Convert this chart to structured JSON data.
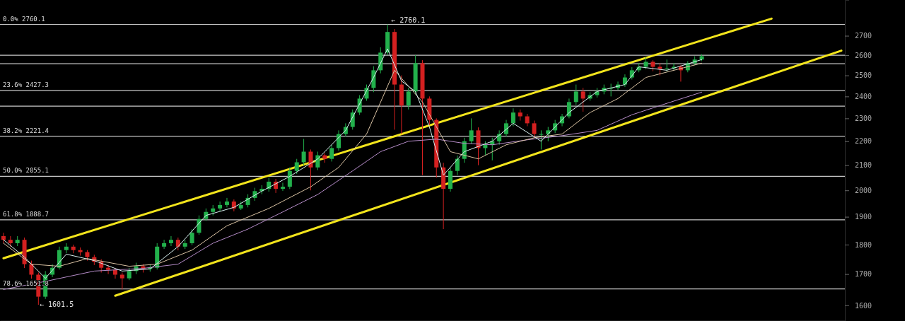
{
  "chart_data": {
    "type": "candlestick",
    "log": true,
    "tick_labels": "y",
    "grid": false,
    "marker": "none",
    "categories": [
      null,
      null,
      null,
      null,
      null,
      null,
      null,
      null,
      null,
      null,
      null,
      null,
      null,
      null,
      null,
      null,
      null,
      null,
      null,
      null,
      null,
      null,
      null,
      null,
      null,
      null,
      null,
      null,
      null,
      null,
      null,
      null,
      null,
      null,
      null,
      null,
      null,
      null,
      null,
      null,
      null,
      null,
      null,
      null,
      null,
      null,
      null,
      null,
      null,
      null,
      null,
      null,
      null,
      null,
      null,
      null,
      null,
      null,
      null,
      null,
      null,
      null,
      null,
      null,
      null,
      null,
      null,
      null,
      null,
      null,
      null,
      null,
      null,
      null,
      null,
      null,
      null,
      null,
      null,
      null,
      null,
      null,
      null,
      null,
      null,
      null,
      null,
      null,
      null,
      null,
      null,
      null,
      null,
      null,
      null,
      null,
      null,
      null,
      null,
      null,
      null,
      null,
      null,
      null,
      null,
      null,
      null,
      null,
      null,
      null,
      null,
      null,
      null,
      null,
      null,
      null,
      null,
      null,
      null,
      null,
      null
    ],
    "ylim": [
      1552,
      2894
    ],
    "yticks": [
      1600,
      1700,
      1800,
      1900,
      2000,
      2100,
      2200,
      2300,
      2400,
      2500,
      2600,
      2700
    ],
    "ohlc": [
      [
        1830,
        1842,
        1805,
        1817
      ],
      [
        1817,
        1830,
        1793,
        1805
      ],
      [
        1805,
        1830,
        1795,
        1817
      ],
      [
        1817,
        1825,
        1720,
        1733
      ],
      [
        1733,
        1745,
        1685,
        1698
      ],
      [
        1698,
        1705,
        1601.5,
        1627
      ],
      [
        1627,
        1710,
        1620,
        1698
      ],
      [
        1698,
        1733,
        1690,
        1721
      ],
      [
        1721,
        1793,
        1715,
        1781
      ],
      [
        1781,
        1805,
        1770,
        1793
      ],
      [
        1793,
        1800,
        1770,
        1781
      ],
      [
        1781,
        1790,
        1762,
        1774
      ],
      [
        1774,
        1781,
        1745,
        1757
      ],
      [
        1757,
        1765,
        1730,
        1741
      ],
      [
        1741,
        1750,
        1705,
        1721
      ],
      [
        1721,
        1730,
        1700,
        1714
      ],
      [
        1714,
        1720,
        1685,
        1698
      ],
      [
        1698,
        1705,
        1650,
        1686
      ],
      [
        1686,
        1720,
        1680,
        1710
      ],
      [
        1710,
        1738,
        1700,
        1726
      ],
      [
        1726,
        1733,
        1705,
        1717
      ],
      [
        1717,
        1733,
        1708,
        1721
      ],
      [
        1721,
        1805,
        1715,
        1793
      ],
      [
        1793,
        1817,
        1785,
        1805
      ],
      [
        1805,
        1830,
        1795,
        1817
      ],
      [
        1817,
        1825,
        1780,
        1793
      ],
      [
        1793,
        1817,
        1785,
        1805
      ],
      [
        1805,
        1855,
        1798,
        1842
      ],
      [
        1842,
        1905,
        1835,
        1892
      ],
      [
        1892,
        1931,
        1885,
        1918
      ],
      [
        1918,
        1944,
        1905,
        1931
      ],
      [
        1931,
        1957,
        1920,
        1944
      ],
      [
        1944,
        1971,
        1935,
        1957
      ],
      [
        1957,
        1965,
        1920,
        1931
      ],
      [
        1931,
        1957,
        1925,
        1944
      ],
      [
        1944,
        1985,
        1935,
        1971
      ],
      [
        1971,
        2010,
        1960,
        1997
      ],
      [
        1997,
        2020,
        1985,
        2006
      ],
      [
        2006,
        2050,
        1995,
        2034
      ],
      [
        2034,
        2045,
        1990,
        2006
      ],
      [
        2006,
        2030,
        1998,
        2014
      ],
      [
        2014,
        2091,
        2005,
        2077
      ],
      [
        2077,
        2126,
        2065,
        2112
      ],
      [
        2112,
        2210,
        2100,
        2156
      ],
      [
        2156,
        2165,
        2000,
        2091
      ],
      [
        2091,
        2156,
        2080,
        2141
      ],
      [
        2141,
        2150,
        2110,
        2126
      ],
      [
        2126,
        2185,
        2115,
        2171
      ],
      [
        2171,
        2247,
        2160,
        2231
      ],
      [
        2231,
        2278,
        2220,
        2262
      ],
      [
        2262,
        2340,
        2250,
        2326
      ],
      [
        2326,
        2406,
        2315,
        2390
      ],
      [
        2390,
        2456,
        2380,
        2440
      ],
      [
        2440,
        2545,
        2420,
        2525
      ],
      [
        2525,
        2640,
        2510,
        2613
      ],
      [
        2613,
        2760.1,
        2600,
        2720
      ],
      [
        2720,
        2735,
        2250,
        2456
      ],
      [
        2456,
        2500,
        2230,
        2358
      ],
      [
        2358,
        2440,
        2340,
        2423
      ],
      [
        2423,
        2600,
        2410,
        2560
      ],
      [
        2560,
        2575,
        2060,
        2390
      ],
      [
        2390,
        2400,
        2270,
        2293
      ],
      [
        2293,
        2300,
        2050,
        2091
      ],
      [
        2091,
        2110,
        1855,
        2006
      ],
      [
        2006,
        2091,
        1995,
        2077
      ],
      [
        2077,
        2140,
        2060,
        2126
      ],
      [
        2126,
        2215,
        2110,
        2200
      ],
      [
        2200,
        2300,
        2190,
        2247
      ],
      [
        2247,
        2260,
        2100,
        2171
      ],
      [
        2171,
        2200,
        2140,
        2185
      ],
      [
        2185,
        2215,
        2120,
        2200
      ],
      [
        2200,
        2247,
        2185,
        2231
      ],
      [
        2231,
        2293,
        2220,
        2278
      ],
      [
        2278,
        2345,
        2265,
        2326
      ],
      [
        2326,
        2340,
        2290,
        2309
      ],
      [
        2309,
        2320,
        2265,
        2278
      ],
      [
        2278,
        2290,
        2215,
        2231
      ],
      [
        2231,
        2247,
        2165,
        2231
      ],
      [
        2231,
        2262,
        2200,
        2247
      ],
      [
        2247,
        2293,
        2235,
        2278
      ],
      [
        2278,
        2320,
        2265,
        2309
      ],
      [
        2309,
        2390,
        2300,
        2374
      ],
      [
        2374,
        2456,
        2360,
        2423
      ],
      [
        2423,
        2440,
        2330,
        2390
      ],
      [
        2390,
        2420,
        2380,
        2406
      ],
      [
        2406,
        2440,
        2395,
        2423
      ],
      [
        2423,
        2456,
        2410,
        2440
      ],
      [
        2440,
        2460,
        2400,
        2440
      ],
      [
        2440,
        2470,
        2430,
        2456
      ],
      [
        2456,
        2505,
        2445,
        2490
      ],
      [
        2490,
        2540,
        2480,
        2525
      ],
      [
        2525,
        2560,
        2515,
        2542
      ],
      [
        2542,
        2590,
        2530,
        2567
      ],
      [
        2567,
        2575,
        2520,
        2542
      ],
      [
        2542,
        2560,
        2500,
        2532
      ],
      [
        2532,
        2578,
        2520,
        2535
      ],
      [
        2535,
        2560,
        2525,
        2542
      ],
      [
        2542,
        2550,
        2470,
        2525
      ],
      [
        2525,
        2570,
        2515,
        2560
      ],
      [
        2560,
        2595,
        2550,
        2578
      ],
      [
        2578,
        2605,
        2570,
        2595
      ],
      null,
      null,
      null,
      null,
      null,
      null,
      null,
      null,
      null,
      null,
      null,
      null,
      null,
      null,
      null,
      null,
      null,
      null,
      null,
      null
    ],
    "series": [
      {
        "type": "line",
        "color": "#b58cc8",
        "values": [
          1650,
          null,
          null,
          null,
          null,
          null,
          1676,
          null,
          null,
          null,
          null,
          null,
          null,
          1710,
          null,
          null,
          null,
          null,
          null,
          null,
          1719,
          null,
          null,
          null,
          null,
          1733,
          null,
          null,
          null,
          null,
          1805,
          null,
          null,
          null,
          null,
          1855,
          null,
          null,
          null,
          null,
          1918,
          null,
          null,
          null,
          null,
          1984,
          null,
          null,
          null,
          null,
          2077,
          null,
          null,
          null,
          2156,
          null,
          null,
          null,
          2200,
          null,
          null,
          null,
          2209,
          null,
          null,
          null,
          2191,
          null,
          null,
          null,
          2185,
          null,
          null,
          null,
          null,
          2206,
          null,
          null,
          null,
          null,
          2224,
          null,
          null,
          null,
          null,
          2247,
          null,
          null,
          null,
          null,
          2316,
          null,
          null,
          null,
          null,
          2368,
          null,
          null,
          null,
          null,
          2420,
          null,
          null,
          null,
          null,
          null,
          null,
          null,
          null,
          null,
          null,
          null,
          null,
          null,
          null,
          null,
          null,
          null,
          null,
          null,
          null
        ]
      },
      {
        "type": "line",
        "color": "#d9c2a3",
        "values": [
          1805,
          null,
          null,
          null,
          1733,
          null,
          null,
          null,
          1726,
          null,
          null,
          null,
          1752,
          null,
          null,
          null,
          null,
          null,
          1726,
          null,
          null,
          null,
          1733,
          null,
          null,
          null,
          null,
          1781,
          null,
          null,
          null,
          null,
          1867,
          null,
          null,
          null,
          null,
          null,
          1931,
          null,
          null,
          null,
          null,
          null,
          2014,
          null,
          null,
          null,
          2091,
          null,
          null,
          null,
          2231,
          null,
          null,
          null,
          2525,
          null,
          null,
          null,
          2374,
          null,
          null,
          null,
          2156,
          null,
          null,
          null,
          2126,
          null,
          null,
          null,
          2185,
          null,
          null,
          null,
          2215,
          null,
          null,
          null,
          2231,
          null,
          null,
          null,
          2326,
          null,
          null,
          null,
          2390,
          null,
          null,
          null,
          2490,
          null,
          null,
          null,
          2525,
          null,
          null,
          null,
          2560,
          null,
          null,
          null,
          null,
          null,
          null,
          null,
          null,
          null,
          null,
          null,
          null,
          null,
          null,
          null,
          null,
          null,
          null,
          null,
          null
        ]
      },
      {
        "type": "line",
        "color": "#d8f0f0",
        "values": [
          1817,
          null,
          null,
          1757,
          null,
          null,
          1686,
          null,
          null,
          1767,
          null,
          null,
          null,
          1745,
          null,
          null,
          null,
          1710,
          null,
          null,
          null,
          1717,
          null,
          null,
          null,
          1793,
          null,
          null,
          null,
          1905,
          null,
          null,
          null,
          1935,
          null,
          null,
          null,
          1997,
          null,
          null,
          null,
          2055,
          null,
          null,
          null,
          2126,
          null,
          null,
          null,
          2247,
          null,
          null,
          null,
          2490,
          null,
          2632,
          null,
          2473,
          null,
          2423,
          null,
          2262,
          null,
          2060,
          null,
          null,
          2156,
          null,
          null,
          null,
          2200,
          null,
          null,
          2278,
          null,
          null,
          null,
          2200,
          null,
          null,
          null,
          2326,
          null,
          null,
          null,
          2423,
          null,
          null,
          null,
          2456,
          null,
          2542,
          null,
          null,
          null,
          2525,
          null,
          null,
          null,
          null,
          2578,
          null,
          null,
          null,
          null,
          null,
          null,
          null,
          null,
          null,
          null,
          null,
          null,
          null,
          null,
          null,
          null,
          null,
          null,
          null,
          null
        ]
      },
      {
        "type": "line",
        "color": "#f2e41c",
        "values": [
          1753,
          null,
          null,
          null,
          null,
          null,
          null,
          null,
          null,
          null,
          null,
          null,
          null,
          null,
          null,
          null,
          null,
          null,
          null,
          null,
          null,
          null,
          null,
          null,
          null,
          null,
          null,
          null,
          null,
          null,
          null,
          null,
          null,
          null,
          null,
          null,
          null,
          null,
          null,
          null,
          null,
          null,
          null,
          null,
          null,
          null,
          null,
          null,
          null,
          null,
          null,
          null,
          null,
          null,
          null,
          null,
          null,
          null,
          null,
          null,
          null,
          null,
          null,
          null,
          null,
          null,
          null,
          null,
          null,
          null,
          null,
          null,
          null,
          null,
          null,
          null,
          null,
          null,
          null,
          null,
          null,
          null,
          null,
          null,
          null,
          null,
          null,
          null,
          null,
          null,
          null,
          null,
          null,
          null,
          null,
          null,
          null,
          null,
          null,
          null,
          null,
          null,
          null,
          null,
          null,
          null,
          null,
          null,
          null,
          null,
          2791,
          null,
          null,
          null,
          null,
          null,
          null,
          null,
          null,
          null,
          null
        ]
      },
      {
        "type": "line",
        "color": "#f2e41c",
        "values": [
          null,
          null,
          null,
          null,
          null,
          null,
          null,
          null,
          null,
          null,
          null,
          null,
          null,
          null,
          null,
          null,
          1630,
          null,
          null,
          null,
          null,
          null,
          null,
          null,
          null,
          null,
          null,
          null,
          null,
          null,
          null,
          null,
          null,
          null,
          null,
          null,
          null,
          null,
          null,
          null,
          null,
          null,
          null,
          null,
          null,
          null,
          null,
          null,
          null,
          null,
          null,
          null,
          null,
          null,
          null,
          null,
          null,
          null,
          null,
          null,
          null,
          null,
          null,
          null,
          null,
          null,
          null,
          null,
          null,
          null,
          null,
          null,
          null,
          null,
          null,
          null,
          null,
          null,
          null,
          null,
          null,
          null,
          null,
          null,
          null,
          null,
          null,
          null,
          null,
          null,
          null,
          null,
          null,
          null,
          null,
          null,
          null,
          null,
          null,
          null,
          null,
          null,
          null,
          null,
          null,
          null,
          null,
          null,
          null,
          null,
          null,
          null,
          null,
          null,
          null,
          null,
          null,
          null,
          null,
          null,
          2623
        ]
      }
    ],
    "ref_lines": [
      {
        "axis": "y",
        "value": 2760.1,
        "label": "0.0% 2760.1",
        "color": "#c8c8c8"
      },
      {
        "axis": "y",
        "value": 2600,
        "label": null,
        "color": "#c8c8c8"
      },
      {
        "axis": "y",
        "value": 2557,
        "label": null,
        "color": "#c8c8c8"
      },
      {
        "axis": "y",
        "value": 2427.3,
        "label": "23.6% 2427.3",
        "color": "#c8c8c8"
      },
      {
        "axis": "y",
        "value": 2355,
        "label": null,
        "color": "#c8c8c8"
      },
      {
        "axis": "y",
        "value": 2221.4,
        "label": "38.2% 2221.4",
        "color": "#c8c8c8"
      },
      {
        "axis": "y",
        "value": 2055.1,
        "label": "50.0% 2055.1",
        "color": "#c8c8c8"
      },
      {
        "axis": "y",
        "value": 1888.7,
        "label": "61.8% 1888.7",
        "color": "#c8c8c8"
      },
      {
        "axis": "y",
        "value": 1651.8,
        "label": "78.6% 1651.8",
        "color": "#c8c8c8"
      }
    ],
    "annotations": [
      {
        "text": "← 2760.1",
        "y": 2760.1
      },
      "← 1601.5"
    ]
  }
}
